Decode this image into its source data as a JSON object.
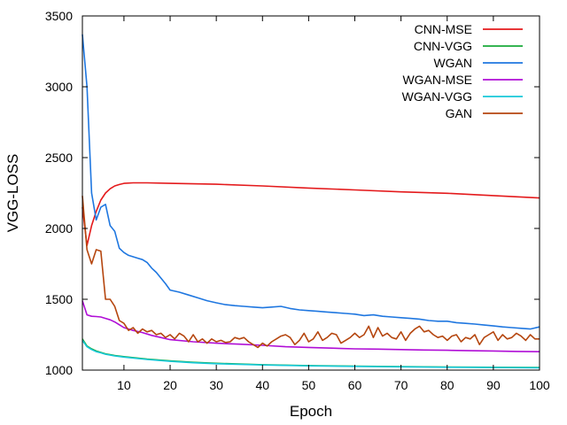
{
  "chart_data": {
    "type": "line",
    "title": "",
    "xlabel": "Epoch",
    "ylabel": "VGG-LOSS",
    "xlim": [
      1,
      100
    ],
    "ylim": [
      1000,
      3500
    ],
    "xticks": [
      10,
      20,
      30,
      40,
      50,
      60,
      70,
      80,
      90,
      100
    ],
    "yticks": [
      1000,
      1500,
      2000,
      2500,
      3000,
      3500
    ],
    "grid": false,
    "legend_position": "top-right",
    "series": [
      {
        "name": "CNN-MSE",
        "color": "#e41a1c",
        "points": [
          [
            1,
            2150
          ],
          [
            2,
            1880
          ],
          [
            3,
            2020
          ],
          [
            4,
            2120
          ],
          [
            5,
            2200
          ],
          [
            6,
            2250
          ],
          [
            7,
            2280
          ],
          [
            8,
            2300
          ],
          [
            9,
            2310
          ],
          [
            10,
            2318
          ],
          [
            12,
            2322
          ],
          [
            15,
            2322
          ],
          [
            20,
            2318
          ],
          [
            30,
            2312
          ],
          [
            40,
            2300
          ],
          [
            50,
            2285
          ],
          [
            60,
            2272
          ],
          [
            70,
            2258
          ],
          [
            80,
            2248
          ],
          [
            90,
            2232
          ],
          [
            100,
            2215
          ]
        ]
      },
      {
        "name": "CNN-VGG",
        "color": "#1aaa3a",
        "points": [
          [
            1,
            1220
          ],
          [
            2,
            1170
          ],
          [
            3,
            1150
          ],
          [
            4,
            1135
          ],
          [
            5,
            1125
          ],
          [
            6,
            1115
          ],
          [
            8,
            1103
          ],
          [
            10,
            1095
          ],
          [
            15,
            1078
          ],
          [
            20,
            1065
          ],
          [
            25,
            1055
          ],
          [
            30,
            1048
          ],
          [
            40,
            1038
          ],
          [
            50,
            1032
          ],
          [
            60,
            1028
          ],
          [
            70,
            1025
          ],
          [
            80,
            1022
          ],
          [
            90,
            1020
          ],
          [
            100,
            1018
          ]
        ]
      },
      {
        "name": "WGAN",
        "color": "#1f77e0",
        "points": [
          [
            1,
            3370
          ],
          [
            2,
            3000
          ],
          [
            3,
            2250
          ],
          [
            4,
            2060
          ],
          [
            5,
            2150
          ],
          [
            6,
            2170
          ],
          [
            7,
            2020
          ],
          [
            8,
            1980
          ],
          [
            9,
            1860
          ],
          [
            10,
            1830
          ],
          [
            11,
            1810
          ],
          [
            12,
            1800
          ],
          [
            13,
            1790
          ],
          [
            14,
            1780
          ],
          [
            15,
            1760
          ],
          [
            16,
            1720
          ],
          [
            17,
            1690
          ],
          [
            18,
            1650
          ],
          [
            19,
            1610
          ],
          [
            20,
            1565
          ],
          [
            22,
            1550
          ],
          [
            24,
            1530
          ],
          [
            26,
            1510
          ],
          [
            28,
            1490
          ],
          [
            30,
            1475
          ],
          [
            32,
            1462
          ],
          [
            34,
            1455
          ],
          [
            36,
            1450
          ],
          [
            38,
            1445
          ],
          [
            40,
            1440
          ],
          [
            42,
            1445
          ],
          [
            44,
            1450
          ],
          [
            46,
            1435
          ],
          [
            48,
            1425
          ],
          [
            50,
            1420
          ],
          [
            52,
            1415
          ],
          [
            54,
            1410
          ],
          [
            56,
            1405
          ],
          [
            58,
            1400
          ],
          [
            60,
            1395
          ],
          [
            62,
            1385
          ],
          [
            64,
            1390
          ],
          [
            66,
            1380
          ],
          [
            68,
            1375
          ],
          [
            70,
            1370
          ],
          [
            72,
            1365
          ],
          [
            74,
            1360
          ],
          [
            76,
            1350
          ],
          [
            78,
            1345
          ],
          [
            80,
            1345
          ],
          [
            82,
            1335
          ],
          [
            84,
            1330
          ],
          [
            86,
            1325
          ],
          [
            88,
            1318
          ],
          [
            90,
            1312
          ],
          [
            92,
            1305
          ],
          [
            94,
            1300
          ],
          [
            96,
            1295
          ],
          [
            98,
            1290
          ],
          [
            100,
            1305
          ]
        ]
      },
      {
        "name": "WGAN-MSE",
        "color": "#b00ed6",
        "points": [
          [
            1,
            1490
          ],
          [
            2,
            1390
          ],
          [
            3,
            1380
          ],
          [
            4,
            1378
          ],
          [
            5,
            1375
          ],
          [
            6,
            1365
          ],
          [
            7,
            1355
          ],
          [
            8,
            1340
          ],
          [
            9,
            1320
          ],
          [
            10,
            1300
          ],
          [
            12,
            1280
          ],
          [
            14,
            1265
          ],
          [
            16,
            1245
          ],
          [
            18,
            1230
          ],
          [
            20,
            1215
          ],
          [
            25,
            1200
          ],
          [
            30,
            1190
          ],
          [
            35,
            1183
          ],
          [
            40,
            1175
          ],
          [
            45,
            1165
          ],
          [
            50,
            1160
          ],
          [
            55,
            1155
          ],
          [
            60,
            1150
          ],
          [
            65,
            1148
          ],
          [
            70,
            1145
          ],
          [
            75,
            1142
          ],
          [
            80,
            1140
          ],
          [
            85,
            1137
          ],
          [
            90,
            1135
          ],
          [
            95,
            1132
          ],
          [
            100,
            1130
          ]
        ]
      },
      {
        "name": "WGAN-VGG",
        "color": "#17c8d8",
        "points": [
          [
            1,
            1210
          ],
          [
            2,
            1165
          ],
          [
            3,
            1145
          ],
          [
            4,
            1130
          ],
          [
            5,
            1122
          ],
          [
            6,
            1112
          ],
          [
            8,
            1100
          ],
          [
            10,
            1092
          ],
          [
            15,
            1075
          ],
          [
            20,
            1062
          ],
          [
            25,
            1052
          ],
          [
            30,
            1045
          ],
          [
            40,
            1036
          ],
          [
            50,
            1030
          ],
          [
            60,
            1026
          ],
          [
            70,
            1023
          ],
          [
            80,
            1020
          ],
          [
            90,
            1018
          ],
          [
            100,
            1016
          ]
        ]
      },
      {
        "name": "GAN",
        "color": "#b5460f",
        "points": [
          [
            1,
            2230
          ],
          [
            2,
            1850
          ],
          [
            3,
            1750
          ],
          [
            4,
            1850
          ],
          [
            5,
            1840
          ],
          [
            6,
            1500
          ],
          [
            7,
            1500
          ],
          [
            8,
            1450
          ],
          [
            9,
            1350
          ],
          [
            10,
            1330
          ],
          [
            11,
            1280
          ],
          [
            12,
            1300
          ],
          [
            13,
            1260
          ],
          [
            14,
            1290
          ],
          [
            15,
            1270
          ],
          [
            16,
            1280
          ],
          [
            17,
            1250
          ],
          [
            18,
            1260
          ],
          [
            19,
            1230
          ],
          [
            20,
            1250
          ],
          [
            21,
            1220
          ],
          [
            22,
            1260
          ],
          [
            23,
            1240
          ],
          [
            24,
            1200
          ],
          [
            25,
            1250
          ],
          [
            26,
            1200
          ],
          [
            27,
            1220
          ],
          [
            28,
            1190
          ],
          [
            29,
            1220
          ],
          [
            30,
            1200
          ],
          [
            31,
            1210
          ],
          [
            32,
            1195
          ],
          [
            33,
            1200
          ],
          [
            34,
            1230
          ],
          [
            35,
            1220
          ],
          [
            36,
            1230
          ],
          [
            37,
            1200
          ],
          [
            38,
            1180
          ],
          [
            39,
            1160
          ],
          [
            40,
            1190
          ],
          [
            41,
            1170
          ],
          [
            42,
            1200
          ],
          [
            43,
            1220
          ],
          [
            44,
            1240
          ],
          [
            45,
            1250
          ],
          [
            46,
            1230
          ],
          [
            47,
            1180
          ],
          [
            48,
            1210
          ],
          [
            49,
            1260
          ],
          [
            50,
            1200
          ],
          [
            51,
            1220
          ],
          [
            52,
            1270
          ],
          [
            53,
            1210
          ],
          [
            54,
            1230
          ],
          [
            55,
            1260
          ],
          [
            56,
            1250
          ],
          [
            57,
            1190
          ],
          [
            58,
            1210
          ],
          [
            59,
            1230
          ],
          [
            60,
            1260
          ],
          [
            61,
            1230
          ],
          [
            62,
            1250
          ],
          [
            63,
            1310
          ],
          [
            64,
            1230
          ],
          [
            65,
            1300
          ],
          [
            66,
            1240
          ],
          [
            67,
            1260
          ],
          [
            68,
            1230
          ],
          [
            69,
            1220
          ],
          [
            70,
            1270
          ],
          [
            71,
            1210
          ],
          [
            72,
            1260
          ],
          [
            73,
            1290
          ],
          [
            74,
            1310
          ],
          [
            75,
            1270
          ],
          [
            76,
            1280
          ],
          [
            77,
            1250
          ],
          [
            78,
            1230
          ],
          [
            79,
            1240
          ],
          [
            80,
            1210
          ],
          [
            81,
            1240
          ],
          [
            82,
            1250
          ],
          [
            83,
            1200
          ],
          [
            84,
            1230
          ],
          [
            85,
            1220
          ],
          [
            86,
            1250
          ],
          [
            87,
            1180
          ],
          [
            88,
            1230
          ],
          [
            89,
            1250
          ],
          [
            90,
            1270
          ],
          [
            91,
            1210
          ],
          [
            92,
            1250
          ],
          [
            93,
            1220
          ],
          [
            94,
            1230
          ],
          [
            95,
            1260
          ],
          [
            96,
            1240
          ],
          [
            97,
            1210
          ],
          [
            98,
            1250
          ],
          [
            99,
            1220
          ],
          [
            100,
            1220
          ]
        ]
      }
    ]
  }
}
